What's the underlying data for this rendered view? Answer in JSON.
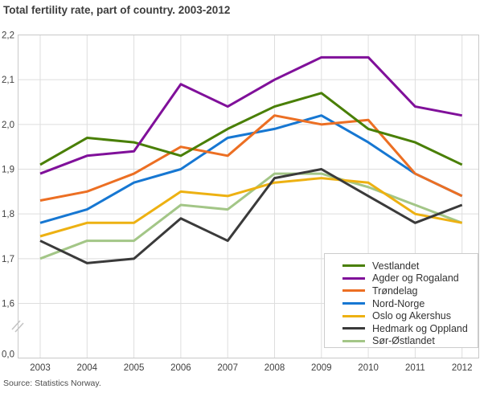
{
  "title": "Total fertility rate, part of country. 2003-2012",
  "source": "Source: Statistics Norway.",
  "colors": {
    "grid": "#dedede",
    "plot_border": "#c9c9c9",
    "axis_break": "#c4c4c4",
    "text": "#3f3f3f"
  },
  "chart_data": {
    "type": "line",
    "title": "Total fertility rate, part of country. 2003-2012",
    "x": [
      2003,
      2004,
      2005,
      2006,
      2007,
      2008,
      2009,
      2010,
      2011,
      2012
    ],
    "x_tick_labels": [
      "2003",
      "2004",
      "2005",
      "2006",
      "2007",
      "2008",
      "2009",
      "2010",
      "2011",
      "2012"
    ],
    "y_ticks": [
      2.2,
      2.1,
      2.0,
      1.9,
      1.8,
      1.7,
      1.6
    ],
    "y_tick_labels": [
      "2,2",
      "2,1",
      "2,0",
      "1,9",
      "1,8",
      "1,7",
      "1,6"
    ],
    "y_bottom_label": "0,0",
    "ylim": [
      1.6,
      2.2
    ],
    "axis_break_to_zero": true,
    "grid": true,
    "decimal_separator": ",",
    "legend_position": "bottom-right-inside",
    "series": [
      {
        "name": "Vestlandet",
        "color": "#497f05",
        "values": [
          1.91,
          1.97,
          1.96,
          1.93,
          1.99,
          2.04,
          2.07,
          1.99,
          1.96,
          1.91
        ]
      },
      {
        "name": "Agder og Rogaland",
        "color": "#80109a",
        "values": [
          1.89,
          1.93,
          1.94,
          2.09,
          2.04,
          2.1,
          2.15,
          2.15,
          2.04,
          2.02
        ]
      },
      {
        "name": "Trøndelag",
        "color": "#ec6f23",
        "values": [
          1.83,
          1.85,
          1.89,
          1.95,
          1.93,
          2.02,
          2.0,
          2.01,
          1.89,
          1.84
        ]
      },
      {
        "name": "Nord-Norge",
        "color": "#1677d2",
        "values": [
          1.78,
          1.81,
          1.87,
          1.9,
          1.97,
          1.99,
          2.02,
          1.96,
          1.89,
          1.84
        ]
      },
      {
        "name": "Oslo og Akershus",
        "color": "#edb112",
        "values": [
          1.75,
          1.78,
          1.78,
          1.85,
          1.84,
          1.87,
          1.88,
          1.87,
          1.8,
          1.78
        ]
      },
      {
        "name": "Hedmark og Oppland",
        "color": "#3a3a3a",
        "values": [
          1.74,
          1.69,
          1.7,
          1.79,
          1.74,
          1.88,
          1.9,
          1.84,
          1.78,
          1.82
        ]
      },
      {
        "name": "Sør-Østlandet",
        "color": "#a3c687",
        "values": [
          1.7,
          1.74,
          1.74,
          1.82,
          1.81,
          1.89,
          1.89,
          1.86,
          1.82,
          1.78
        ]
      }
    ],
    "z_order": [
      "Nord-Norge",
      "Sør-Østlandet",
      "Oslo og Akershus",
      "Hedmark og Oppland",
      "Trøndelag",
      "Vestlandet",
      "Agder og Rogaland"
    ]
  }
}
